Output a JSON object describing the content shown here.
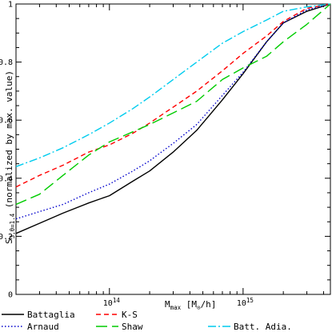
{
  "chart_data": {
    "type": "line",
    "title": "",
    "xlabel": {
      "main": "M",
      "subscript": "max",
      "unit_open": " [M",
      "unit_sub": "⊙",
      "unit_close": "/h]"
    },
    "ylabel": {
      "main": "S",
      "subscript": "3,θ=1.4",
      "rest": "   (normalized by max. value)"
    },
    "x_scale": "log",
    "xlim": [
      20000000000000.0,
      4500000000000000.0
    ],
    "ylim": [
      0,
      1
    ],
    "grid": false,
    "legend_position": "bottom-below-plot",
    "xticks": [
      {
        "value": 100000000000000.0,
        "label": "10",
        "exponent": "14"
      },
      {
        "value": 1000000000000000.0,
        "label": "10",
        "exponent": "15"
      }
    ],
    "yticks": [
      {
        "value": 0,
        "label": "0"
      },
      {
        "value": 0.2,
        "label": "0.2"
      },
      {
        "value": 0.4,
        "label": "0.4"
      },
      {
        "value": 0.6,
        "label": "0.6"
      },
      {
        "value": 0.8,
        "label": "0.8"
      },
      {
        "value": 1,
        "label": "1"
      }
    ],
    "series": [
      {
        "name": "Battaglia",
        "color": "#000000",
        "dash": "solid",
        "x": [
          20000000000000.0,
          30000000000000.0,
          45000000000000.0,
          70000000000000.0,
          100000000000000.0,
          150000000000000.0,
          200000000000000.0,
          300000000000000.0,
          450000000000000.0,
          700000000000000.0,
          1000000000000000.0,
          1500000000000000.0,
          2000000000000000.0,
          3000000000000000.0,
          4500000000000000.0
        ],
        "y": [
          0.21,
          0.245,
          0.28,
          0.315,
          0.34,
          0.39,
          0.425,
          0.49,
          0.565,
          0.67,
          0.76,
          0.87,
          0.935,
          0.975,
          1.0
        ]
      },
      {
        "name": "Arnaud",
        "color": "#0000cc",
        "dash": "dotted",
        "x": [
          20000000000000.0,
          30000000000000.0,
          45000000000000.0,
          70000000000000.0,
          100000000000000.0,
          150000000000000.0,
          200000000000000.0,
          300000000000000.0,
          450000000000000.0,
          700000000000000.0,
          1000000000000000.0,
          1500000000000000.0,
          2000000000000000.0,
          3000000000000000.0,
          4500000000000000.0
        ],
        "y": [
          0.26,
          0.285,
          0.31,
          0.35,
          0.38,
          0.425,
          0.46,
          0.52,
          0.585,
          0.685,
          0.765,
          0.87,
          0.935,
          0.98,
          1.0
        ]
      },
      {
        "name": "K-S",
        "color": "#ff0000",
        "dash": "dashed",
        "x": [
          20000000000000.0,
          30000000000000.0,
          45000000000000.0,
          70000000000000.0,
          100000000000000.0,
          150000000000000.0,
          200000000000000.0,
          300000000000000.0,
          450000000000000.0,
          700000000000000.0,
          1000000000000000.0,
          1500000000000000.0,
          2000000000000000.0,
          3000000000000000.0,
          4500000000000000.0
        ],
        "y": [
          0.37,
          0.41,
          0.445,
          0.49,
          0.515,
          0.555,
          0.59,
          0.645,
          0.7,
          0.77,
          0.83,
          0.89,
          0.94,
          0.985,
          1.0
        ]
      },
      {
        "name": "Shaw",
        "color": "#00cc00",
        "dash": "long-dashed",
        "x": [
          20000000000000.0,
          30000000000000.0,
          45000000000000.0,
          70000000000000.0,
          100000000000000.0,
          150000000000000.0,
          200000000000000.0,
          300000000000000.0,
          450000000000000.0,
          700000000000000.0,
          1000000000000000.0,
          1500000000000000.0,
          2000000000000000.0,
          3000000000000000.0,
          4500000000000000.0
        ],
        "y": [
          0.31,
          0.345,
          0.41,
          0.48,
          0.525,
          0.56,
          0.585,
          0.625,
          0.665,
          0.74,
          0.78,
          0.82,
          0.87,
          0.93,
          1.0
        ]
      },
      {
        "name": "Batt. Adia.",
        "color": "#00ccee",
        "dash": "dash-dot",
        "x": [
          20000000000000.0,
          30000000000000.0,
          45000000000000.0,
          70000000000000.0,
          100000000000000.0,
          150000000000000.0,
          200000000000000.0,
          300000000000000.0,
          450000000000000.0,
          700000000000000.0,
          1000000000000000.0,
          1500000000000000.0,
          2000000000000000.0,
          3000000000000000.0,
          4500000000000000.0
        ],
        "y": [
          0.44,
          0.47,
          0.505,
          0.55,
          0.59,
          0.64,
          0.68,
          0.74,
          0.8,
          0.865,
          0.905,
          0.945,
          0.975,
          0.99,
          1.0
        ]
      }
    ]
  }
}
